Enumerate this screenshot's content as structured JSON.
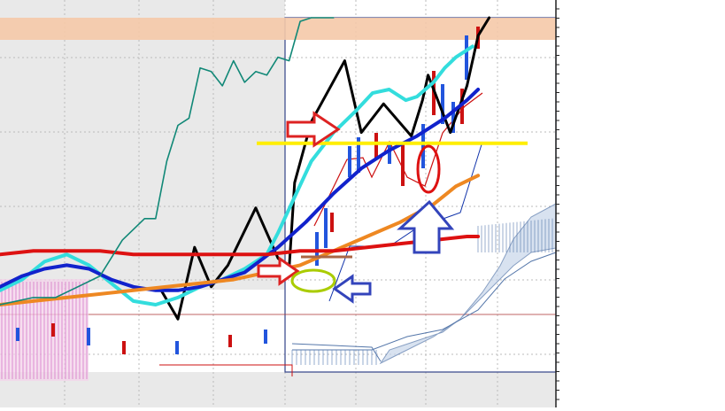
{
  "chart_data": {
    "type": "line",
    "title": "",
    "xlabel": "",
    "ylabel": "",
    "grid": true,
    "legend": "none",
    "x_unit": "bar index",
    "xlim": [
      0,
      100
    ],
    "ylim": [
      0,
      100
    ],
    "series": [
      {
        "key": "zigzag",
        "color": "#000000",
        "points": [
          [
            29,
            24
          ],
          [
            32,
            16
          ],
          [
            35,
            36
          ],
          [
            38,
            25
          ],
          [
            41,
            31
          ],
          [
            46,
            47
          ],
          [
            50,
            33
          ],
          [
            52,
            30
          ],
          [
            53,
            54
          ],
          [
            56,
            71
          ],
          [
            62,
            88
          ],
          [
            65,
            68
          ],
          [
            69,
            76
          ],
          [
            74,
            67
          ],
          [
            76,
            77
          ],
          [
            77,
            84
          ],
          [
            81,
            68
          ],
          [
            84,
            81
          ],
          [
            86,
            95
          ],
          [
            88,
            100
          ]
        ]
      },
      {
        "key": "cyan-ma",
        "color": "#33dddd",
        "points": [
          [
            0,
            24
          ],
          [
            4,
            27
          ],
          [
            8,
            32
          ],
          [
            12,
            34
          ],
          [
            16,
            31
          ],
          [
            20,
            26
          ],
          [
            24,
            21
          ],
          [
            28,
            20
          ],
          [
            32,
            22
          ],
          [
            36,
            25
          ],
          [
            40,
            27
          ],
          [
            44,
            30
          ],
          [
            48,
            34
          ],
          [
            50,
            40
          ],
          [
            53,
            50
          ],
          [
            56,
            60
          ],
          [
            60,
            68
          ],
          [
            64,
            74
          ],
          [
            67,
            79
          ],
          [
            70,
            80
          ],
          [
            73,
            77
          ],
          [
            75,
            78
          ],
          [
            78,
            82
          ],
          [
            80,
            86
          ],
          [
            82,
            89
          ],
          [
            85,
            92
          ]
        ]
      },
      {
        "key": "blue-ma",
        "color": "#1122cc",
        "points": [
          [
            0,
            25
          ],
          [
            4,
            28
          ],
          [
            8,
            30
          ],
          [
            12,
            31
          ],
          [
            16,
            30
          ],
          [
            20,
            27
          ],
          [
            24,
            25
          ],
          [
            28,
            24
          ],
          [
            32,
            24
          ],
          [
            36,
            25
          ],
          [
            40,
            27
          ],
          [
            44,
            29
          ],
          [
            50,
            36
          ],
          [
            55,
            43
          ],
          [
            60,
            51
          ],
          [
            65,
            58
          ],
          [
            70,
            63
          ],
          [
            75,
            67
          ],
          [
            80,
            72
          ],
          [
            84,
            77
          ],
          [
            86,
            80
          ]
        ]
      },
      {
        "key": "orange-ma",
        "color": "#ee8822",
        "points": [
          [
            0,
            20
          ],
          [
            6,
            21
          ],
          [
            12,
            22
          ],
          [
            18,
            23
          ],
          [
            24,
            24
          ],
          [
            30,
            25
          ],
          [
            36,
            26
          ],
          [
            42,
            27
          ],
          [
            48,
            29
          ],
          [
            54,
            31
          ],
          [
            60,
            35
          ],
          [
            66,
            39
          ],
          [
            72,
            43
          ],
          [
            78,
            48
          ],
          [
            82,
            53
          ],
          [
            86,
            56
          ]
        ]
      },
      {
        "key": "red-ma",
        "color": "#dd1111",
        "points": [
          [
            0,
            34
          ],
          [
            6,
            35
          ],
          [
            12,
            35
          ],
          [
            18,
            35
          ],
          [
            24,
            34
          ],
          [
            30,
            34
          ],
          [
            36,
            34
          ],
          [
            42,
            34
          ],
          [
            48,
            34
          ],
          [
            54,
            35
          ],
          [
            60,
            35
          ],
          [
            66,
            36
          ],
          [
            72,
            37
          ],
          [
            78,
            38
          ],
          [
            84,
            39
          ],
          [
            86,
            39
          ]
        ]
      },
      {
        "key": "teal-line",
        "color": "#118877",
        "points": [
          [
            0,
            20
          ],
          [
            6,
            22
          ],
          [
            10,
            22
          ],
          [
            14,
            25
          ],
          [
            18,
            28
          ],
          [
            22,
            38
          ],
          [
            26,
            44
          ],
          [
            28,
            44
          ],
          [
            30,
            60
          ],
          [
            32,
            70
          ],
          [
            34,
            72
          ],
          [
            36,
            86
          ],
          [
            38,
            85
          ],
          [
            40,
            81
          ],
          [
            42,
            88
          ],
          [
            44,
            82
          ],
          [
            46,
            85
          ],
          [
            48,
            84
          ],
          [
            50,
            89
          ],
          [
            52,
            88
          ],
          [
            54,
            99
          ],
          [
            56,
            100
          ],
          [
            58,
            100
          ],
          [
            60,
            100
          ]
        ]
      }
    ],
    "annotations": [
      {
        "shape": "horizontal-line",
        "color": "#ffee00",
        "y": 65
      },
      {
        "shape": "arrow-right",
        "color": "#dd2222"
      },
      {
        "shape": "arrow-right",
        "color": "#dd2222"
      },
      {
        "shape": "arrow-left",
        "color": "#3344bb"
      },
      {
        "shape": "arrow-up",
        "color": "#3344bb"
      },
      {
        "shape": "ellipse",
        "color": "#dd1111"
      },
      {
        "shape": "ellipse",
        "color": "#aacc00"
      }
    ],
    "colors": {
      "background": "#ffffff",
      "grid": "#bbbbbb",
      "resistance_band": "#f5c9a8",
      "cloud": "#5577aa",
      "cloud_left": "#cc55bb",
      "candle_up": "#2255dd",
      "candle_down": "#cc1111"
    }
  }
}
